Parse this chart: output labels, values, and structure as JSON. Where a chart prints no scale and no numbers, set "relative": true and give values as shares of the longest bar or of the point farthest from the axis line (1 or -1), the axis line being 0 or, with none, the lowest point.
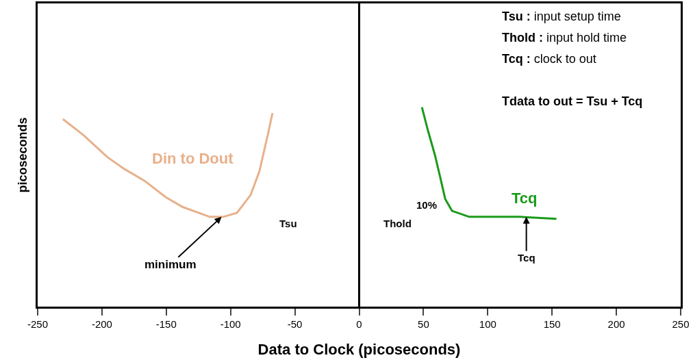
{
  "chart_data": {
    "type": "line",
    "relative": true,
    "xlabel": "Data to Clock (picoseconds)",
    "ylabel": "picoseconds",
    "xlim": [
      -250,
      250
    ],
    "xticks": [
      -250,
      -200,
      -150,
      -100,
      -50,
      0,
      50,
      100,
      150,
      200,
      250
    ],
    "legend": false,
    "marker": "none",
    "line_style": "solid",
    "series": [
      {
        "name": "Din to Dout",
        "color": "#e8b08a",
        "x": [
          -230.4,
          -214.4,
          -195.9,
          -182.6,
          -166.7,
          -150.7,
          -137.5,
          -116.2,
          -105.6,
          -95,
          -84.4,
          -77.5,
          -71.1,
          -67.4
        ],
        "values": [
          0.94,
          0.86,
          0.75,
          0.69,
          0.63,
          0.55,
          0.5,
          0.45,
          0.45,
          0.47,
          0.56,
          0.68,
          0.86,
          0.97
        ]
      },
      {
        "name": "Tcq",
        "color": "#1a9a1a",
        "x": [
          48.8,
          53.6,
          58.9,
          62.6,
          66.9,
          72.2,
          85.5,
          125.3,
          153.4
        ],
        "values": [
          1.0,
          0.88,
          0.76,
          0.66,
          0.54,
          0.48,
          0.45,
          0.45,
          0.44
        ]
      }
    ],
    "ref_lines": [
      {
        "axis": "x",
        "value": 0,
        "color": "#000000"
      }
    ],
    "annotations": [
      "Tsu : input setup time",
      "Thold : input hold time",
      "Tcq : clock to out",
      "Tdata to out = Tsu + Tcq",
      {
        "text": "minimum",
        "x": -107,
        "y": 0.45
      },
      "Tsu",
      "Thold",
      "10%",
      {
        "text": "Tcq",
        "x": 130,
        "y": 0.45
      }
    ]
  }
}
